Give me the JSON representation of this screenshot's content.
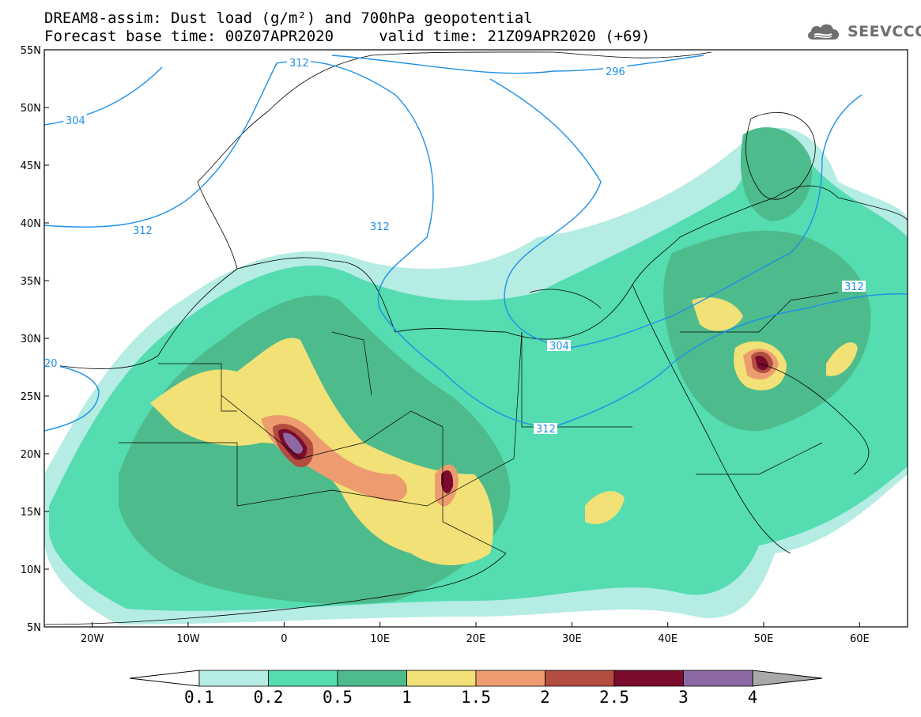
{
  "header": {
    "title_line1": "DREAM8-assim: Dust load (g/m²) and 700hPa geopotential",
    "title_line2": "Forecast base time: 00Z07APR2020     valid time: 21Z09APR2020 (+69)"
  },
  "logo": {
    "text": "SEEVCCC",
    "icon": "cloud-icon",
    "color": "#6e6e6e"
  },
  "map": {
    "extent": {
      "lon": [
        -25,
        65
      ],
      "lat": [
        5,
        55
      ]
    },
    "lat_labels": [
      "55N",
      "50N",
      "45N",
      "40N",
      "35N",
      "30N",
      "25N",
      "20N",
      "15N",
      "10N",
      "5N"
    ],
    "lon_labels": [
      "20W",
      "10W",
      "0",
      "10E",
      "20E",
      "30E",
      "40E",
      "50E",
      "60E"
    ],
    "contour_labels": [
      "312",
      "296",
      "304",
      "312",
      "312",
      "304",
      "312",
      "312",
      "20"
    ]
  },
  "colorbar": {
    "labels": [
      "0.1",
      "0.2",
      "0.5",
      "1",
      "1.5",
      "2",
      "2.5",
      "3",
      "4"
    ],
    "colors": [
      "#ffffff",
      "#b5ece4",
      "#55dcb0",
      "#4dbb8c",
      "#f1e176",
      "#ed9c70",
      "#b24d40",
      "#7b0b2c",
      "#8c69a3",
      "#a9a9a9"
    ]
  },
  "contour_color": "#1e90e8",
  "land_outline_color": "#000000"
}
